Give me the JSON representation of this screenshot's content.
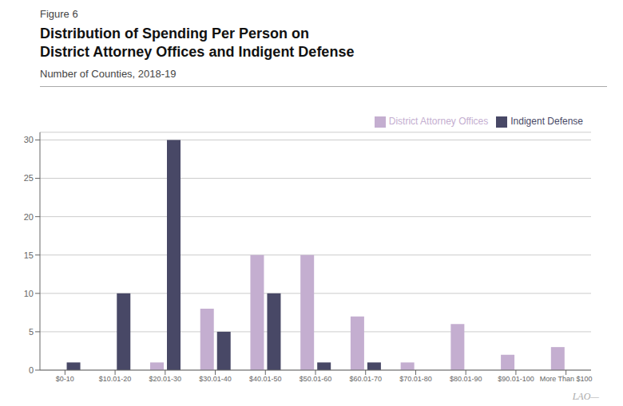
{
  "chart_data": {
    "type": "bar",
    "title": "Distribution of Spending Per Person on\nDistrict Attorney Offices and Indigent Defense",
    "subtitle": "Number of Counties, 2018-19",
    "annotations": [
      "Figure 6",
      "LAO—"
    ],
    "categories": [
      "$0-10",
      "$10.01-20",
      "$20.01-30",
      "$30.01-40",
      "$40.01-50",
      "$50.01-60",
      "$60.01-70",
      "$70.01-80",
      "$80.01-90",
      "$90.01-100",
      "More Than $100"
    ],
    "series": [
      {
        "name": "District Attorney Offices",
        "color": "#c4aed0",
        "values": [
          0,
          0,
          1,
          8,
          15,
          15,
          7,
          1,
          6,
          2,
          3
        ]
      },
      {
        "name": "Indigent Defense",
        "color": "#484866",
        "values": [
          1,
          10,
          30,
          5,
          10,
          1,
          1,
          0,
          0,
          0,
          0
        ]
      }
    ],
    "ylim": [
      0,
      31
    ],
    "yticks": [
      0,
      5,
      10,
      15,
      20,
      25,
      30
    ],
    "grid": true,
    "legend": "upper right"
  }
}
